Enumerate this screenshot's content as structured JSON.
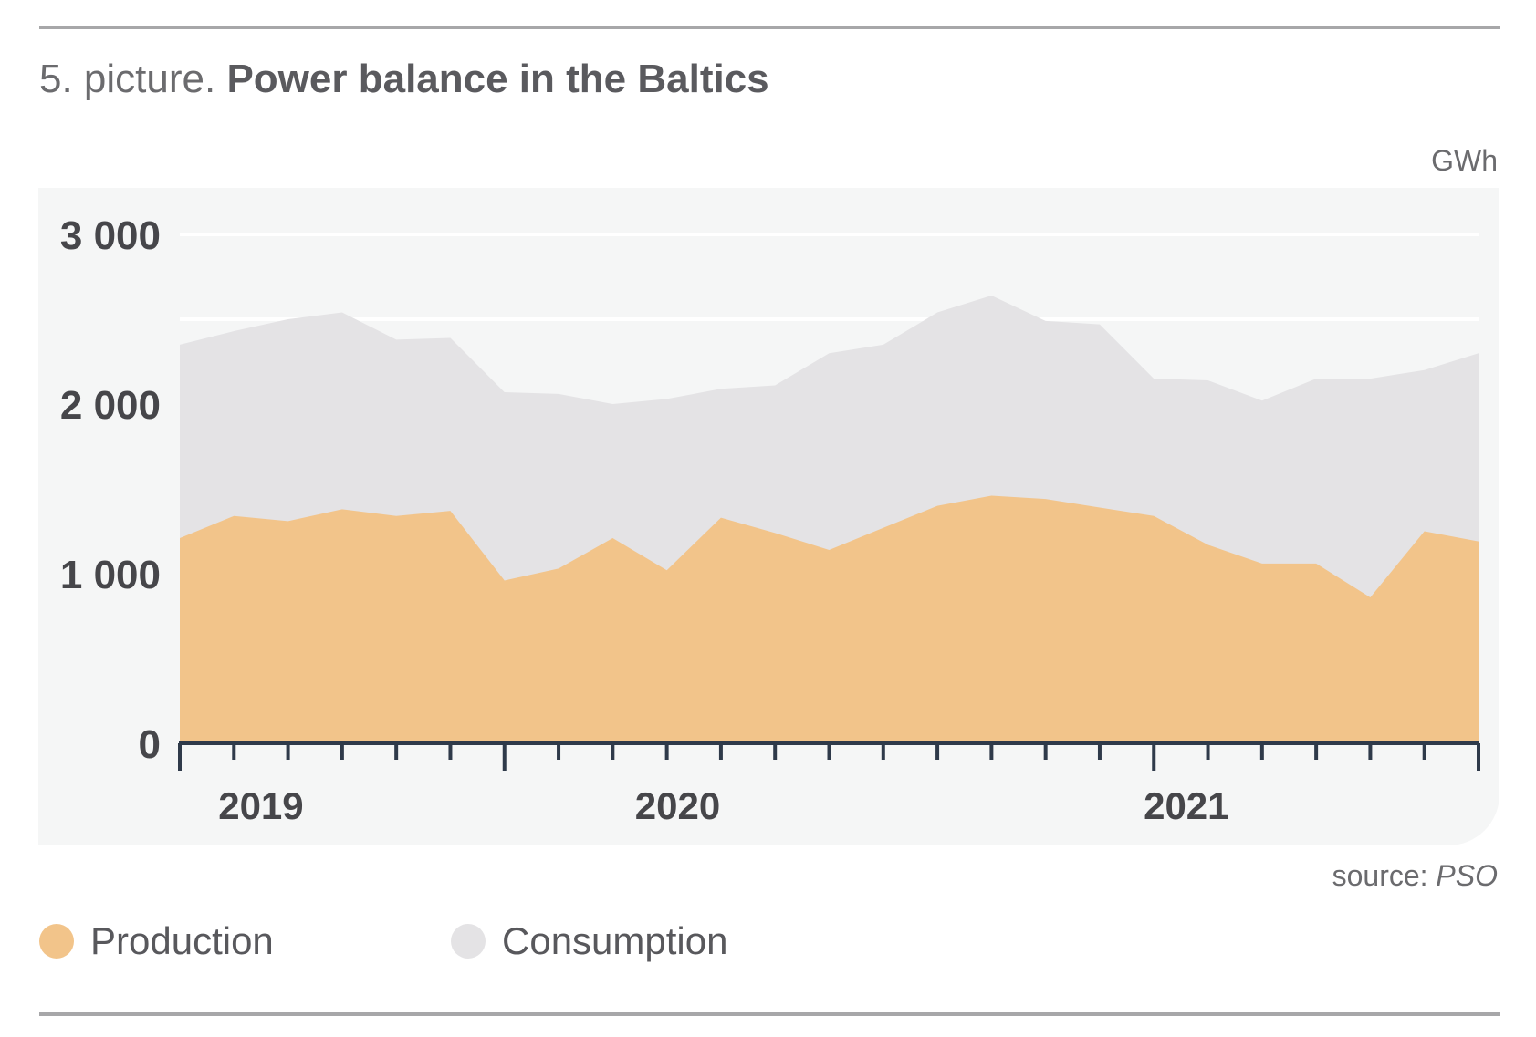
{
  "title": {
    "prefix": "5. picture.",
    "main": "Power balance in the Baltics"
  },
  "unit": "GWh",
  "source": {
    "prefix": "source:",
    "name": "PSO"
  },
  "legend": [
    {
      "label": "Production",
      "color": "#f2c48a"
    },
    {
      "label": "Consumption",
      "color": "#e4e3e5"
    }
  ],
  "chart_data": {
    "type": "area",
    "ylabel": "GWh",
    "ylim": [
      0,
      3000
    ],
    "yticks": [
      0,
      1000,
      2000,
      3000
    ],
    "ytick_labels": [
      "0",
      "1 000",
      "2 000",
      "3 000"
    ],
    "gridlines": [
      2500,
      3000
    ],
    "x_start_month": 1,
    "x_start_year": 2019,
    "year_labels": [
      {
        "label": "2019",
        "month_index": 1.5
      },
      {
        "label": "2020",
        "month_index": 9.2
      },
      {
        "label": "2021",
        "month_index": 18.6
      }
    ],
    "series": [
      {
        "name": "Consumption",
        "color": "#e4e3e5",
        "values": [
          2350,
          2430,
          2500,
          2540,
          2380,
          2390,
          2070,
          2060,
          2000,
          2030,
          2090,
          2110,
          2300,
          2350,
          2540,
          2640,
          2490,
          2470,
          2150,
          2140,
          2020,
          2150,
          2150,
          2200,
          2300
        ]
      },
      {
        "name": "Production",
        "color": "#f2c48a",
        "values": [
          1210,
          1340,
          1310,
          1380,
          1340,
          1370,
          960,
          1030,
          1210,
          1020,
          1330,
          1240,
          1140,
          1270,
          1400,
          1460,
          1440,
          1390,
          1340,
          1170,
          1060,
          1060,
          860,
          1250,
          1190
        ]
      }
    ]
  }
}
